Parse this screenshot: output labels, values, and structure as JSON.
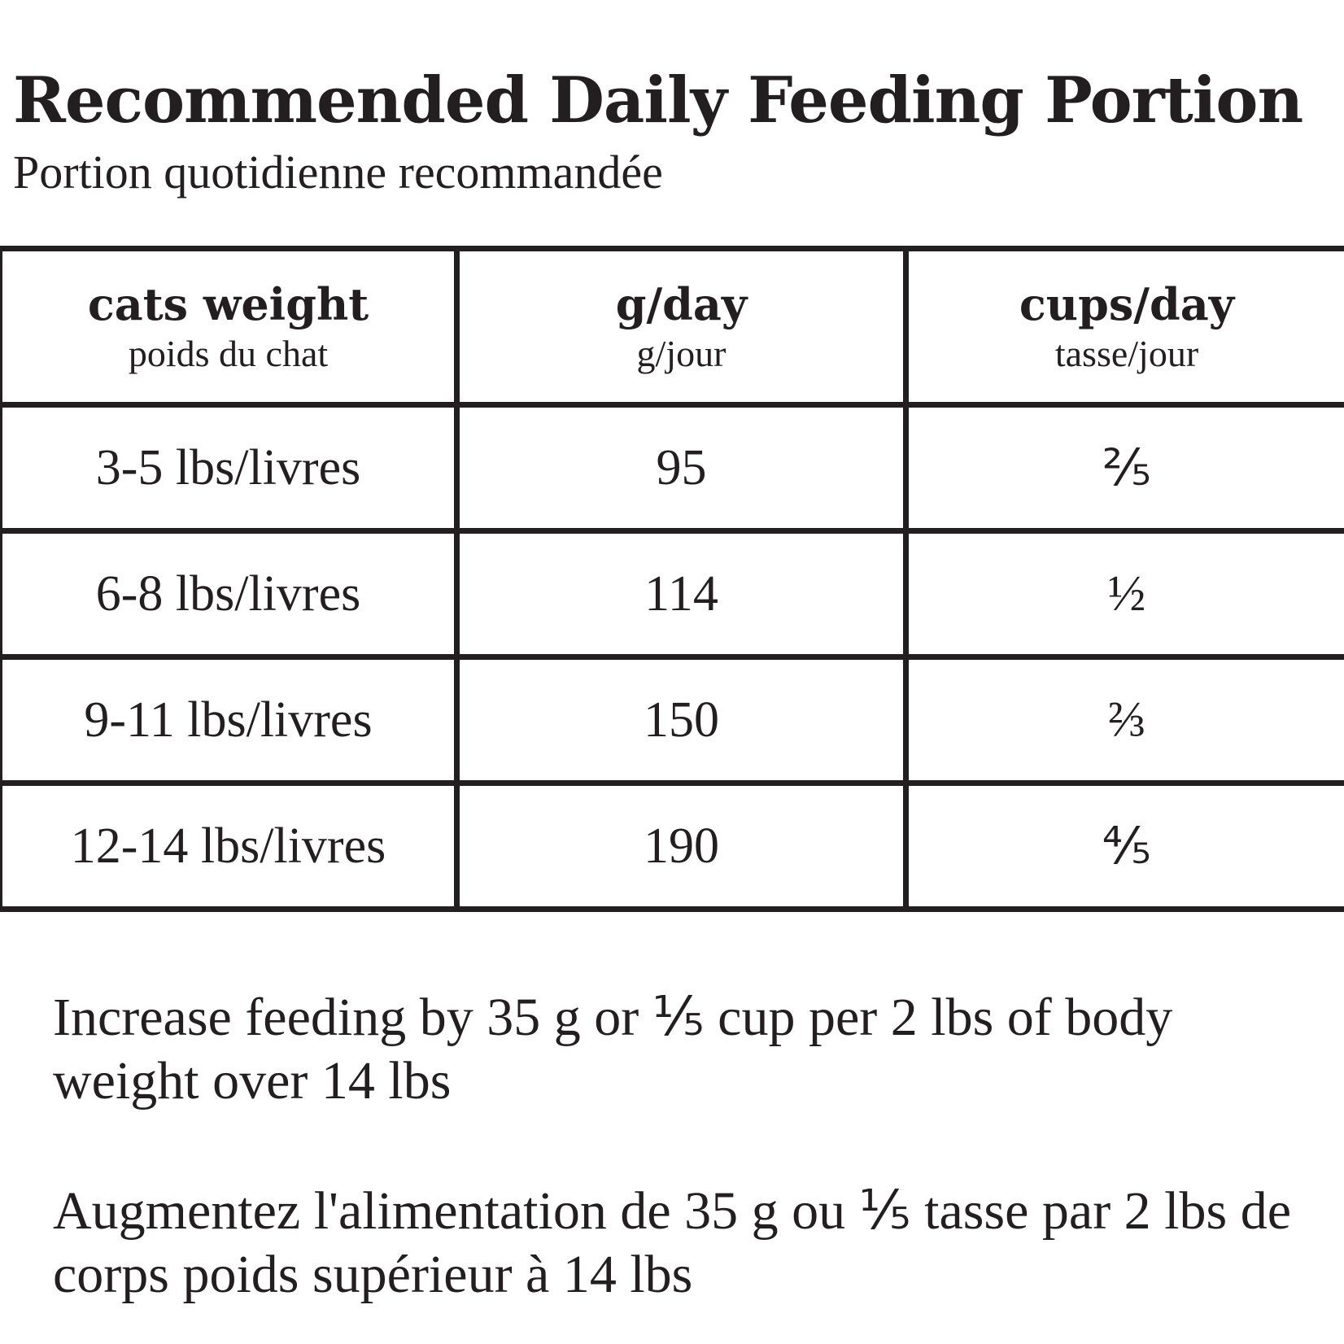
{
  "header": {
    "title": "Recommended Daily Feeding Portion",
    "subtitle": "Portion quotidienne recommandée"
  },
  "table": {
    "headers": [
      [
        "cats weight",
        "poids du chat"
      ],
      [
        "g/day",
        "g/jour"
      ],
      [
        "cups/day",
        "tasse/jour"
      ]
    ],
    "rows": [
      [
        "3-5 lbs/livres",
        "95",
        "⅖"
      ],
      [
        "6-8 lbs/livres",
        "114",
        "½"
      ],
      [
        "9-11 lbs/livres",
        "150",
        "⅔"
      ],
      [
        "12-14 lbs/livres",
        "190",
        "⅘"
      ]
    ]
  },
  "notes": [
    "Increase feeding by 35 g or ⅕ cup per 2 lbs of body weight over 14 lbs",
    "Augmentez l'alimentation de 35 g ou ⅕ tasse par 2 lbs de corps poids supérieur à 14 lbs"
  ]
}
